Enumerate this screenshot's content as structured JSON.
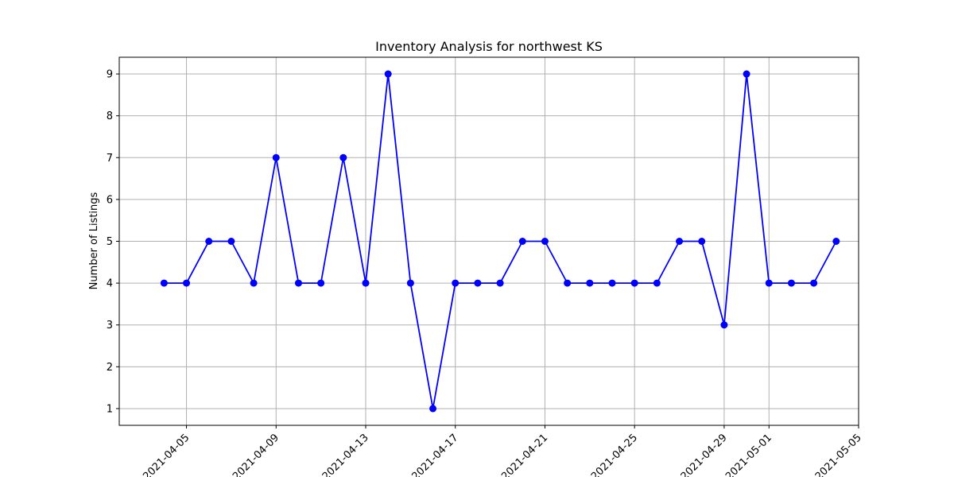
{
  "chart_data": {
    "type": "line",
    "title": "Inventory Analysis for northwest KS",
    "xlabel": "",
    "ylabel": "Number of Listings",
    "x": [
      "2021-04-04",
      "2021-04-05",
      "2021-04-06",
      "2021-04-07",
      "2021-04-08",
      "2021-04-09",
      "2021-04-10",
      "2021-04-11",
      "2021-04-12",
      "2021-04-13",
      "2021-04-14",
      "2021-04-15",
      "2021-04-16",
      "2021-04-17",
      "2021-04-18",
      "2021-04-19",
      "2021-04-20",
      "2021-04-21",
      "2021-04-22",
      "2021-04-23",
      "2021-04-24",
      "2021-04-25",
      "2021-04-26",
      "2021-04-27",
      "2021-04-28",
      "2021-04-29",
      "2021-04-30",
      "2021-05-01",
      "2021-05-02",
      "2021-05-03",
      "2021-05-04"
    ],
    "series": [
      {
        "color": "#0000ff",
        "marker": "circle",
        "values": [
          4,
          4,
          5,
          5,
          4,
          7,
          4,
          4,
          7,
          4,
          9,
          4,
          1,
          4,
          4,
          4,
          5,
          5,
          4,
          4,
          4,
          4,
          4,
          5,
          5,
          3,
          9,
          4,
          4,
          4,
          5
        ]
      }
    ],
    "xlim": [
      "2021-04-02",
      "2021-05-05"
    ],
    "ylim": [
      0.6,
      9.4
    ],
    "x_ticks": [
      "2021-04-05",
      "2021-04-09",
      "2021-04-13",
      "2021-04-17",
      "2021-04-21",
      "2021-04-25",
      "2021-04-29",
      "2021-05-01",
      "2021-05-05"
    ],
    "y_ticks": [
      1,
      2,
      3,
      4,
      5,
      6,
      7,
      8,
      9
    ],
    "grid": true,
    "legend": "none",
    "colors": {
      "line": "#0000ff",
      "grid": "#b0b0b0",
      "axis": "#000000"
    }
  }
}
